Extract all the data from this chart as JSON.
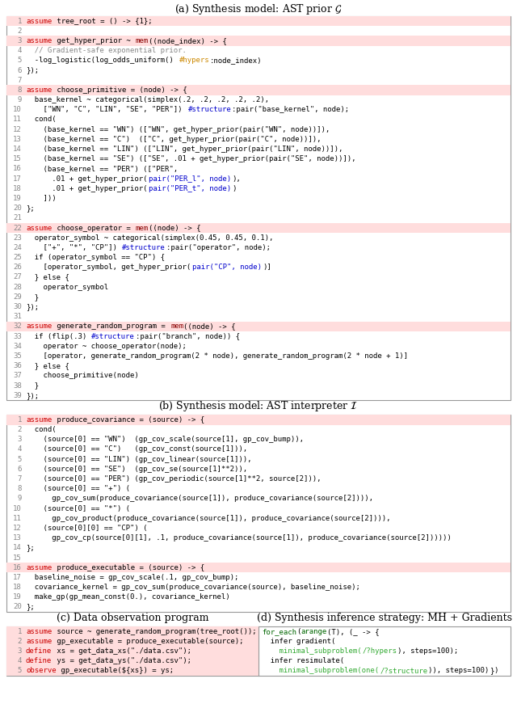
{
  "title_a": "(a) Synthesis model: AST prior $\\mathcal{G}$",
  "title_b": "(b) Synthesis model: AST interpreter $\\mathcal{I}$",
  "title_c": "(c) Data observation program",
  "title_d": "(d) Synthesis inference strategy: MH + Gradients",
  "code_a": [
    [
      1,
      [
        [
          "assume",
          "#cc0000"
        ],
        [
          " tree_root = () -> {1};",
          "#000000"
        ]
      ]
    ],
    [
      2,
      [
        [
          "",
          "#000000"
        ]
      ]
    ],
    [
      3,
      [
        [
          "assume",
          "#cc0000"
        ],
        [
          " get_hyper_prior ~ ",
          "#000000"
        ],
        [
          "mem",
          "#8b0000"
        ],
        [
          "((node_index) -> {",
          "#000000"
        ]
      ]
    ],
    [
      4,
      [
        [
          "  // Gradient-safe exponential prior.",
          "#888888"
        ]
      ]
    ],
    [
      5,
      [
        [
          "  -log_logistic(log_odds_uniform() ",
          "#000000"
        ],
        [
          "#hypers",
          "#cc8800"
        ],
        [
          ":node_index)",
          "#000000"
        ]
      ]
    ],
    [
      6,
      [
        [
          "});",
          "#000000"
        ]
      ]
    ],
    [
      7,
      [
        [
          "",
          "#000000"
        ]
      ]
    ],
    [
      8,
      [
        [
          "assume",
          "#cc0000"
        ],
        [
          " choose_primitive = (node) -> {",
          "#000000"
        ]
      ]
    ],
    [
      9,
      [
        [
          "  base_kernel ~ categorical(simplex(.2, .2, .2, .2, .2),",
          "#000000"
        ]
      ]
    ],
    [
      10,
      [
        [
          "    [\"WN\", \"C\", \"LIN\", \"SE\", \"PER\"]) ",
          "#000000"
        ],
        [
          "#structure",
          "#0000cc"
        ],
        [
          ":pair(\"base_kernel\", node);",
          "#000000"
        ]
      ]
    ],
    [
      11,
      [
        [
          "  cond(",
          "#000000"
        ]
      ]
    ],
    [
      12,
      [
        [
          "    (base_kernel == \"WN\") ([\"WN\", get_hyper_prior(pair(\"WN\", node))]),",
          "#000000"
        ]
      ]
    ],
    [
      13,
      [
        [
          "    (base_kernel == \"C\")  ([\"C\", get_hyper_prior(pair(\"C\", node))]),",
          "#000000"
        ]
      ]
    ],
    [
      14,
      [
        [
          "    (base_kernel == \"LIN\") ([\"LIN\", get_hyper_prior(pair(\"LIN\", node))]),",
          "#000000"
        ]
      ]
    ],
    [
      15,
      [
        [
          "    (base_kernel == \"SE\") ([\"SE\", .01 + get_hyper_prior(pair(\"SE\", node))]),",
          "#000000"
        ]
      ]
    ],
    [
      16,
      [
        [
          "    (base_kernel == \"PER\") ([\"PER\",",
          "#000000"
        ]
      ]
    ],
    [
      17,
      [
        [
          "      .01 + get_hyper_prior(",
          "#000000"
        ],
        [
          "pair(\"PER_l\", node)",
          "#0000cc"
        ],
        [
          "),",
          "#000000"
        ]
      ]
    ],
    [
      18,
      [
        [
          "      .01 + get_hyper_prior(",
          "#000000"
        ],
        [
          "pair(\"PER_t\", node)",
          "#0000cc"
        ],
        [
          ")",
          "#000000"
        ]
      ]
    ],
    [
      19,
      [
        [
          "    ]))",
          "#000000"
        ]
      ]
    ],
    [
      20,
      [
        [
          "};",
          "#000000"
        ]
      ]
    ],
    [
      21,
      [
        [
          "",
          "#000000"
        ]
      ]
    ],
    [
      22,
      [
        [
          "assume",
          "#cc0000"
        ],
        [
          " choose_operator = ",
          "#000000"
        ],
        [
          "mem",
          "#8b0000"
        ],
        [
          "((node) -> {",
          "#000000"
        ]
      ]
    ],
    [
      23,
      [
        [
          "  operator_symbol ~ categorical(simplex(0.45, 0.45, 0.1),",
          "#000000"
        ]
      ]
    ],
    [
      24,
      [
        [
          "    [\"+\", \"*\", \"CP\"]) ",
          "#000000"
        ],
        [
          "#structure",
          "#0000cc"
        ],
        [
          ":pair(\"operator\", node);",
          "#000000"
        ]
      ]
    ],
    [
      25,
      [
        [
          "  if (operator_symbol == \"CP\") {",
          "#000000"
        ]
      ]
    ],
    [
      26,
      [
        [
          "    [operator_symbol, get_hyper_prior(",
          "#000000"
        ],
        [
          "pair(\"CP\", node)",
          "#0000cc"
        ],
        [
          ")]",
          "#000000"
        ]
      ]
    ],
    [
      27,
      [
        [
          "  } else {",
          "#000000"
        ]
      ]
    ],
    [
      28,
      [
        [
          "    operator_symbol",
          "#000000"
        ]
      ]
    ],
    [
      29,
      [
        [
          "  }",
          "#000000"
        ]
      ]
    ],
    [
      30,
      [
        [
          "});",
          "#000000"
        ]
      ]
    ],
    [
      31,
      [
        [
          "",
          "#000000"
        ]
      ]
    ],
    [
      32,
      [
        [
          "assume",
          "#cc0000"
        ],
        [
          " generate_random_program = ",
          "#000000"
        ],
        [
          "mem",
          "#8b0000"
        ],
        [
          "((node) -> {",
          "#000000"
        ]
      ]
    ],
    [
      33,
      [
        [
          "  if (flip(.3) ",
          "#000000"
        ],
        [
          "#structure",
          "#0000cc"
        ],
        [
          ":pair(\"branch\", node)) {",
          "#000000"
        ]
      ]
    ],
    [
      34,
      [
        [
          "    operator ~ choose_operator(node);",
          "#000000"
        ]
      ]
    ],
    [
      35,
      [
        [
          "    [operator, generate_random_program(2 * node), generate_random_program(2 * node + 1)]",
          "#000000"
        ]
      ]
    ],
    [
      36,
      [
        [
          "  } else {",
          "#000000"
        ]
      ]
    ],
    [
      37,
      [
        [
          "    choose_primitive(node)",
          "#000000"
        ]
      ]
    ],
    [
      38,
      [
        [
          "  }",
          "#000000"
        ]
      ]
    ],
    [
      39,
      [
        [
          "});",
          "#000000"
        ]
      ]
    ]
  ],
  "code_b": [
    [
      1,
      [
        [
          "assume",
          "#cc0000"
        ],
        [
          " produce_covariance = (source) -> {",
          "#000000"
        ]
      ]
    ],
    [
      2,
      [
        [
          "  cond(",
          "#000000"
        ]
      ]
    ],
    [
      3,
      [
        [
          "    (source[0] == \"WN\")  (gp_cov_scale(source[1], gp_cov_bump)),",
          "#000000"
        ]
      ]
    ],
    [
      4,
      [
        [
          "    (source[0] == \"C\")   (gp_cov_const(source[1])),",
          "#000000"
        ]
      ]
    ],
    [
      5,
      [
        [
          "    (source[0] == \"LIN\") (gp_cov_linear(source[1])),",
          "#000000"
        ]
      ]
    ],
    [
      6,
      [
        [
          "    (source[0] == \"SE\")  (gp_cov_se(source[1]**2)),",
          "#000000"
        ]
      ]
    ],
    [
      7,
      [
        [
          "    (source[0] == \"PER\") (gp_cov_periodic(source[1]**2, source[2])),",
          "#000000"
        ]
      ]
    ],
    [
      8,
      [
        [
          "    (source[0] == \"+\") (",
          "#000000"
        ]
      ]
    ],
    [
      9,
      [
        [
          "      gp_cov_sum(produce_covariance(source[1]), produce_covariance(source[2]))),",
          "#000000"
        ]
      ]
    ],
    [
      10,
      [
        [
          "    (source[0] == \"*\") (",
          "#000000"
        ]
      ]
    ],
    [
      11,
      [
        [
          "      gp_cov_product(produce_covariance(source[1]), produce_covariance(source[2]))),",
          "#000000"
        ]
      ]
    ],
    [
      12,
      [
        [
          "    (source[0][0] == \"CP\") (",
          "#000000"
        ]
      ]
    ],
    [
      13,
      [
        [
          "      gp_cov_cp(source[0][1], .1, produce_covariance(source[1]), produce_covariance(source[2])))))",
          "#000000"
        ]
      ]
    ],
    [
      14,
      [
        [
          "};",
          "#000000"
        ]
      ]
    ],
    [
      15,
      [
        [
          "",
          "#000000"
        ]
      ]
    ],
    [
      16,
      [
        [
          "assume",
          "#cc0000"
        ],
        [
          " produce_executable = (source) -> {",
          "#000000"
        ]
      ]
    ],
    [
      17,
      [
        [
          "  baseline_noise = gp_cov_scale(.1, gp_cov_bump);",
          "#000000"
        ]
      ]
    ],
    [
      18,
      [
        [
          "  covariance_kernel = gp_cov_sum(produce_covariance(source), baseline_noise);",
          "#000000"
        ]
      ]
    ],
    [
      19,
      [
        [
          "  make_gp(gp_mean_const(0.), covariance_kernel)",
          "#000000"
        ]
      ]
    ],
    [
      20,
      [
        [
          "};",
          "#000000"
        ]
      ]
    ]
  ],
  "code_c": [
    [
      1,
      [
        [
          "assume",
          "#cc0000"
        ],
        [
          " source ~ generate_random_program(tree_root());",
          "#000000"
        ]
      ]
    ],
    [
      2,
      [
        [
          "assume",
          "#cc0000"
        ],
        [
          " gp_executable = produce_executable(source);",
          "#000000"
        ]
      ]
    ],
    [
      3,
      [
        [
          "define",
          "#cc0000"
        ],
        [
          " xs = get_data_xs(\"./data.csv\");",
          "#000000"
        ]
      ]
    ],
    [
      4,
      [
        [
          "define",
          "#cc0000"
        ],
        [
          " ys = get_data_ys(\"./data.csv\");",
          "#000000"
        ]
      ]
    ],
    [
      5,
      [
        [
          "observe",
          "#cc0000"
        ],
        [
          " gp_executable(${xs}) = ys;",
          "#000000"
        ]
      ]
    ]
  ],
  "code_d": [
    [
      1,
      [
        [
          "for_each",
          "#006600"
        ],
        [
          "(",
          "#000000"
        ],
        [
          "arange",
          "#006600"
        ],
        [
          "(T), (_ -> {",
          "#000000"
        ]
      ]
    ],
    [
      2,
      [
        [
          "  infer gradient(",
          "#000000"
        ]
      ]
    ],
    [
      3,
      [
        [
          "    minimal_subproblem(",
          "#33aa33"
        ],
        [
          "/?hypers",
          "#33aa33"
        ],
        [
          "), steps=100);",
          "#000000"
        ]
      ]
    ],
    [
      4,
      [
        [
          "  infer resimulate(",
          "#000000"
        ]
      ]
    ],
    [
      5,
      [
        [
          "    minimal_subproblem(one(",
          "#33aa33"
        ],
        [
          "/?structure",
          "#33aa33"
        ],
        [
          ")), steps=100)",
          "#000000"
        ],
        [
          "}",
          "#000000"
        ],
        [
          ")",
          "#000000"
        ]
      ]
    ]
  ],
  "highlight_color": "#ffdddd",
  "highlight_lines_a": [
    1,
    3,
    8,
    22,
    32
  ],
  "highlight_lines_b": [
    1,
    16
  ],
  "highlight_lines_c": [
    1,
    2,
    3,
    4,
    5
  ],
  "box_edge_color": "#999999",
  "line_number_color": "#888888",
  "font_size_pt": 6.5,
  "title_font_size_pt": 9.0
}
